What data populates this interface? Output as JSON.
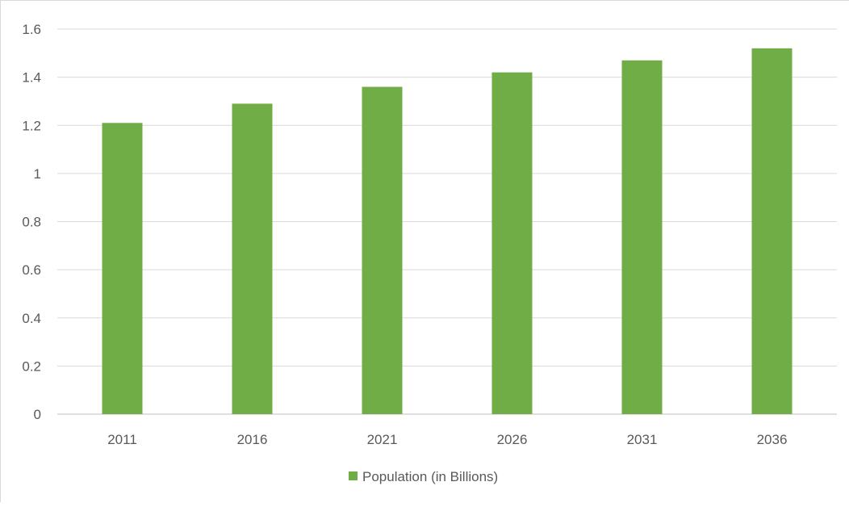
{
  "chart_data": {
    "type": "bar",
    "title": "",
    "xlabel": "",
    "ylabel": "",
    "categories": [
      "2011",
      "2016",
      "2021",
      "2026",
      "2031",
      "2036"
    ],
    "series": [
      {
        "name": "Population (in Billions)",
        "values": [
          1.21,
          1.29,
          1.36,
          1.42,
          1.47,
          1.52
        ],
        "color": "#70ad47"
      }
    ],
    "ylim": [
      0,
      1.6
    ],
    "yticks": [
      "0",
      "0.2",
      "0.4",
      "0.6",
      "0.8",
      "1",
      "1.2",
      "1.4",
      "1.6"
    ],
    "grid": true,
    "legend_position": "bottom"
  }
}
